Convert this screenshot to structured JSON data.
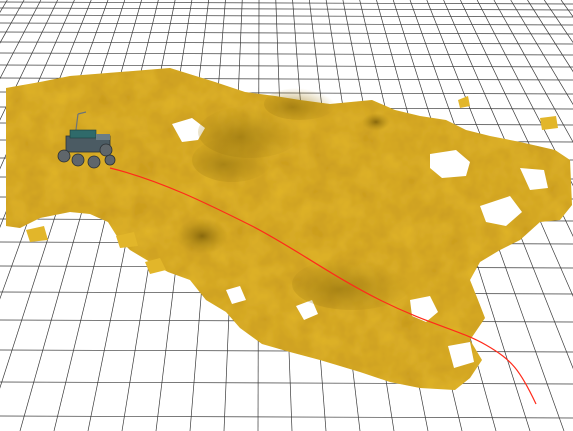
{
  "scene": {
    "type": "3D terrain map viewer",
    "background_color": "#ffffff",
    "grid_color": "#3a3a3a",
    "terrain_color": "#e2b62a",
    "terrain_shadow_color": "#a98414",
    "path_color": "#ff2a1a",
    "rover_body_color": "#4b5b63",
    "rover_panel_color": "#2f6a6a",
    "rover_wheel_color": "#5f666b"
  },
  "objects": {
    "terrain": {
      "name": "terrain-surface"
    },
    "rover": {
      "name": "rover-model",
      "icon": "rover-icon"
    },
    "path": {
      "name": "planned-path"
    }
  }
}
